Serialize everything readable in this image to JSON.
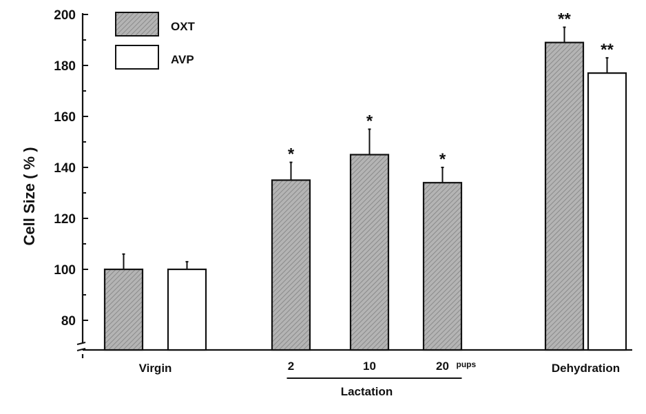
{
  "colors": {
    "oxt_fill": "#a9a9a9",
    "avp_fill": "#ffffff",
    "ink": "#111111"
  },
  "chart_data": {
    "type": "bar",
    "ylabel": "Cell Size ( % )",
    "ylim": [
      72,
      200
    ],
    "y_ticks": [
      80,
      100,
      120,
      140,
      160,
      180,
      200
    ],
    "y_axis_break": true,
    "legend": {
      "placement": "top-left",
      "entries": [
        "OXT",
        "AVP"
      ]
    },
    "series": [
      {
        "name": "OXT",
        "style": "hatched-gray",
        "values": [
          100,
          135,
          145,
          134,
          189
        ],
        "errors": [
          6,
          7,
          10,
          6,
          6
        ],
        "significance": [
          "",
          "*",
          "*",
          "*",
          "**"
        ]
      },
      {
        "name": "AVP",
        "style": "open",
        "values": [
          100,
          null,
          null,
          null,
          177
        ],
        "errors": [
          3,
          null,
          null,
          null,
          6
        ],
        "significance": [
          "",
          "",
          "",
          "",
          "**"
        ]
      }
    ],
    "groups": [
      {
        "label": "Virgin",
        "bars": [
          {
            "series": 0,
            "point": 0
          },
          {
            "series": 1,
            "point": 0
          }
        ]
      },
      {
        "label": "Lactation",
        "sub_labels": [
          "2",
          "10",
          "20"
        ],
        "sub_unit": "pups",
        "bars": [
          {
            "series": 0,
            "point": 1
          },
          {
            "series": 0,
            "point": 2
          },
          {
            "series": 0,
            "point": 3
          }
        ]
      },
      {
        "label": "Dehydration",
        "bars": [
          {
            "series": 0,
            "point": 4
          },
          {
            "series": 1,
            "point": 4
          }
        ]
      }
    ]
  }
}
